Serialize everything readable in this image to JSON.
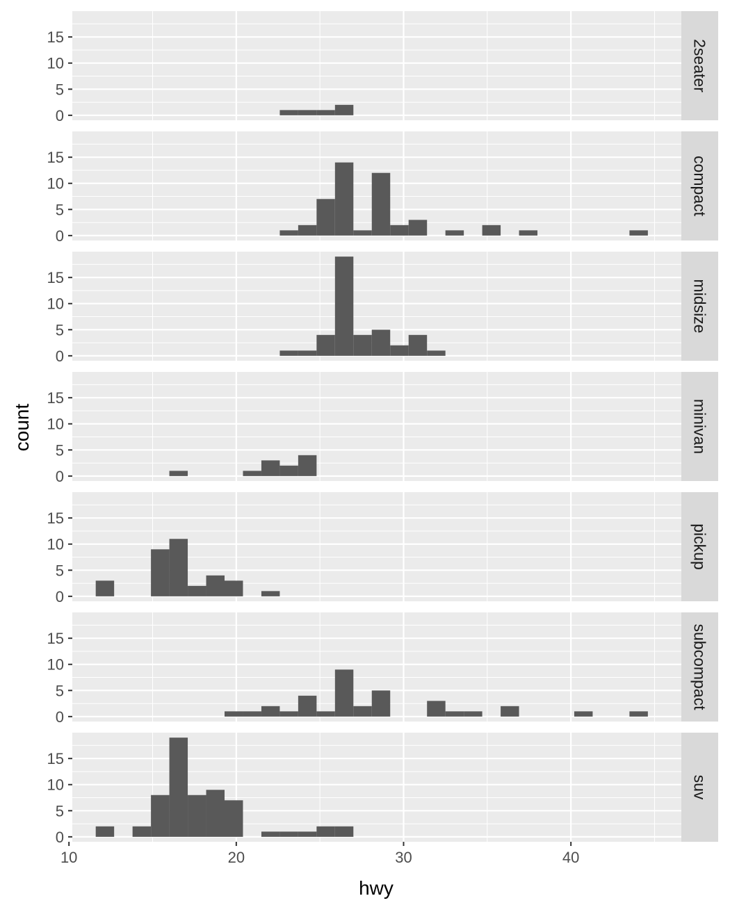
{
  "chart_data": {
    "type": "bar",
    "subtype": "faceted histogram",
    "xlabel": "hwy",
    "ylabel": "count",
    "x_ticks": [
      10,
      20,
      30,
      40
    ],
    "y_ticks": [
      0,
      5,
      10,
      15
    ],
    "xlim": [
      10.2,
      46.6
    ],
    "ylim": [
      -0.95,
      19.95
    ],
    "grid": true,
    "legend": "none",
    "bin_width": 1.1,
    "bin_start": 11.5,
    "colors": {
      "bar": "#595959",
      "panel_bg": "#ebebeb",
      "grid": "#ffffff",
      "strip_bg": "#d9d9d9"
    },
    "facets": [
      {
        "name": "2seater",
        "bins": [
          {
            "x": 23.15,
            "count": 1
          },
          {
            "x": 24.25,
            "count": 1
          },
          {
            "x": 25.35,
            "count": 1
          },
          {
            "x": 26.45,
            "count": 2
          }
        ]
      },
      {
        "name": "compact",
        "bins": [
          {
            "x": 23.15,
            "count": 1
          },
          {
            "x": 24.25,
            "count": 2
          },
          {
            "x": 25.35,
            "count": 7
          },
          {
            "x": 26.45,
            "count": 14
          },
          {
            "x": 27.55,
            "count": 1
          },
          {
            "x": 28.65,
            "count": 12
          },
          {
            "x": 29.75,
            "count": 2
          },
          {
            "x": 30.85,
            "count": 3
          },
          {
            "x": 33.05,
            "count": 1
          },
          {
            "x": 35.25,
            "count": 2
          },
          {
            "x": 37.45,
            "count": 1
          },
          {
            "x": 44.05,
            "count": 1
          }
        ]
      },
      {
        "name": "midsize",
        "bins": [
          {
            "x": 23.15,
            "count": 1
          },
          {
            "x": 24.25,
            "count": 1
          },
          {
            "x": 25.35,
            "count": 4
          },
          {
            "x": 26.45,
            "count": 19
          },
          {
            "x": 27.55,
            "count": 4
          },
          {
            "x": 28.65,
            "count": 5
          },
          {
            "x": 29.75,
            "count": 2
          },
          {
            "x": 30.85,
            "count": 4
          },
          {
            "x": 31.95,
            "count": 1
          }
        ]
      },
      {
        "name": "minivan",
        "bins": [
          {
            "x": 16.55,
            "count": 1
          },
          {
            "x": 20.95,
            "count": 1
          },
          {
            "x": 22.05,
            "count": 3
          },
          {
            "x": 23.15,
            "count": 2
          },
          {
            "x": 24.25,
            "count": 4
          }
        ]
      },
      {
        "name": "pickup",
        "bins": [
          {
            "x": 12.15,
            "count": 3
          },
          {
            "x": 15.45,
            "count": 9
          },
          {
            "x": 16.55,
            "count": 11
          },
          {
            "x": 17.65,
            "count": 2
          },
          {
            "x": 18.75,
            "count": 4
          },
          {
            "x": 19.85,
            "count": 3
          },
          {
            "x": 22.05,
            "count": 1
          }
        ]
      },
      {
        "name": "subcompact",
        "bins": [
          {
            "x": 19.85,
            "count": 1
          },
          {
            "x": 20.95,
            "count": 1
          },
          {
            "x": 22.05,
            "count": 2
          },
          {
            "x": 23.15,
            "count": 1
          },
          {
            "x": 24.25,
            "count": 4
          },
          {
            "x": 25.35,
            "count": 1
          },
          {
            "x": 26.45,
            "count": 9
          },
          {
            "x": 27.55,
            "count": 2
          },
          {
            "x": 28.65,
            "count": 5
          },
          {
            "x": 31.95,
            "count": 3
          },
          {
            "x": 33.05,
            "count": 1
          },
          {
            "x": 34.15,
            "count": 1
          },
          {
            "x": 36.35,
            "count": 2
          },
          {
            "x": 40.75,
            "count": 1
          },
          {
            "x": 44.05,
            "count": 1
          }
        ]
      },
      {
        "name": "suv",
        "bins": [
          {
            "x": 12.15,
            "count": 2
          },
          {
            "x": 14.35,
            "count": 2
          },
          {
            "x": 15.45,
            "count": 8
          },
          {
            "x": 16.55,
            "count": 19
          },
          {
            "x": 17.65,
            "count": 8
          },
          {
            "x": 18.75,
            "count": 9
          },
          {
            "x": 19.85,
            "count": 7
          },
          {
            "x": 22.05,
            "count": 1
          },
          {
            "x": 23.15,
            "count": 1
          },
          {
            "x": 24.25,
            "count": 1
          },
          {
            "x": 25.35,
            "count": 2
          },
          {
            "x": 26.45,
            "count": 2
          }
        ]
      }
    ]
  }
}
